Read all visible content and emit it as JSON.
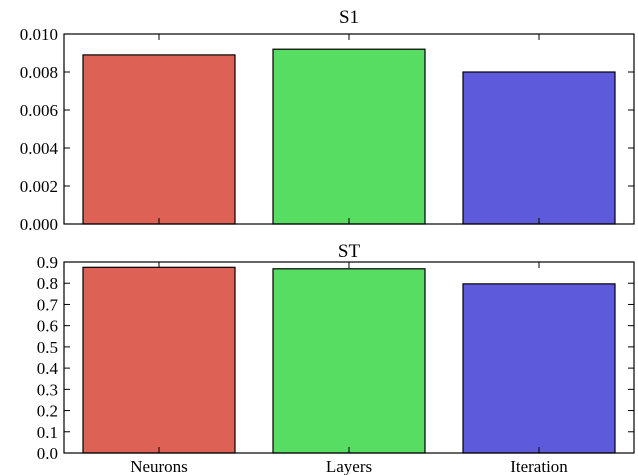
{
  "chart_data": [
    {
      "type": "bar",
      "title": "S1",
      "categories": [
        "Neurons",
        "Layers",
        "Iteration"
      ],
      "values": [
        0.0089,
        0.0092,
        0.008
      ],
      "colors": [
        "#dd6155",
        "#57dd62",
        "#5d5bdc"
      ],
      "ylim": [
        0,
        0.01
      ],
      "yticks": [
        "0.000",
        "0.002",
        "0.004",
        "0.006",
        "0.008",
        "0.010"
      ],
      "show_xtick_labels": false,
      "grid": false,
      "xlabel": "",
      "ylabel": ""
    },
    {
      "type": "bar",
      "title": "ST",
      "categories": [
        "Neurons",
        "Layers",
        "Iteration"
      ],
      "values": [
        0.875,
        0.868,
        0.797
      ],
      "colors": [
        "#dd6155",
        "#57dd62",
        "#5d5bdc"
      ],
      "ylim": [
        0,
        0.9
      ],
      "yticks": [
        "0.0",
        "0.1",
        "0.2",
        "0.3",
        "0.4",
        "0.5",
        "0.6",
        "0.7",
        "0.8",
        "0.9"
      ],
      "show_xtick_labels": true,
      "grid": false,
      "xlabel": "",
      "ylabel": ""
    }
  ]
}
